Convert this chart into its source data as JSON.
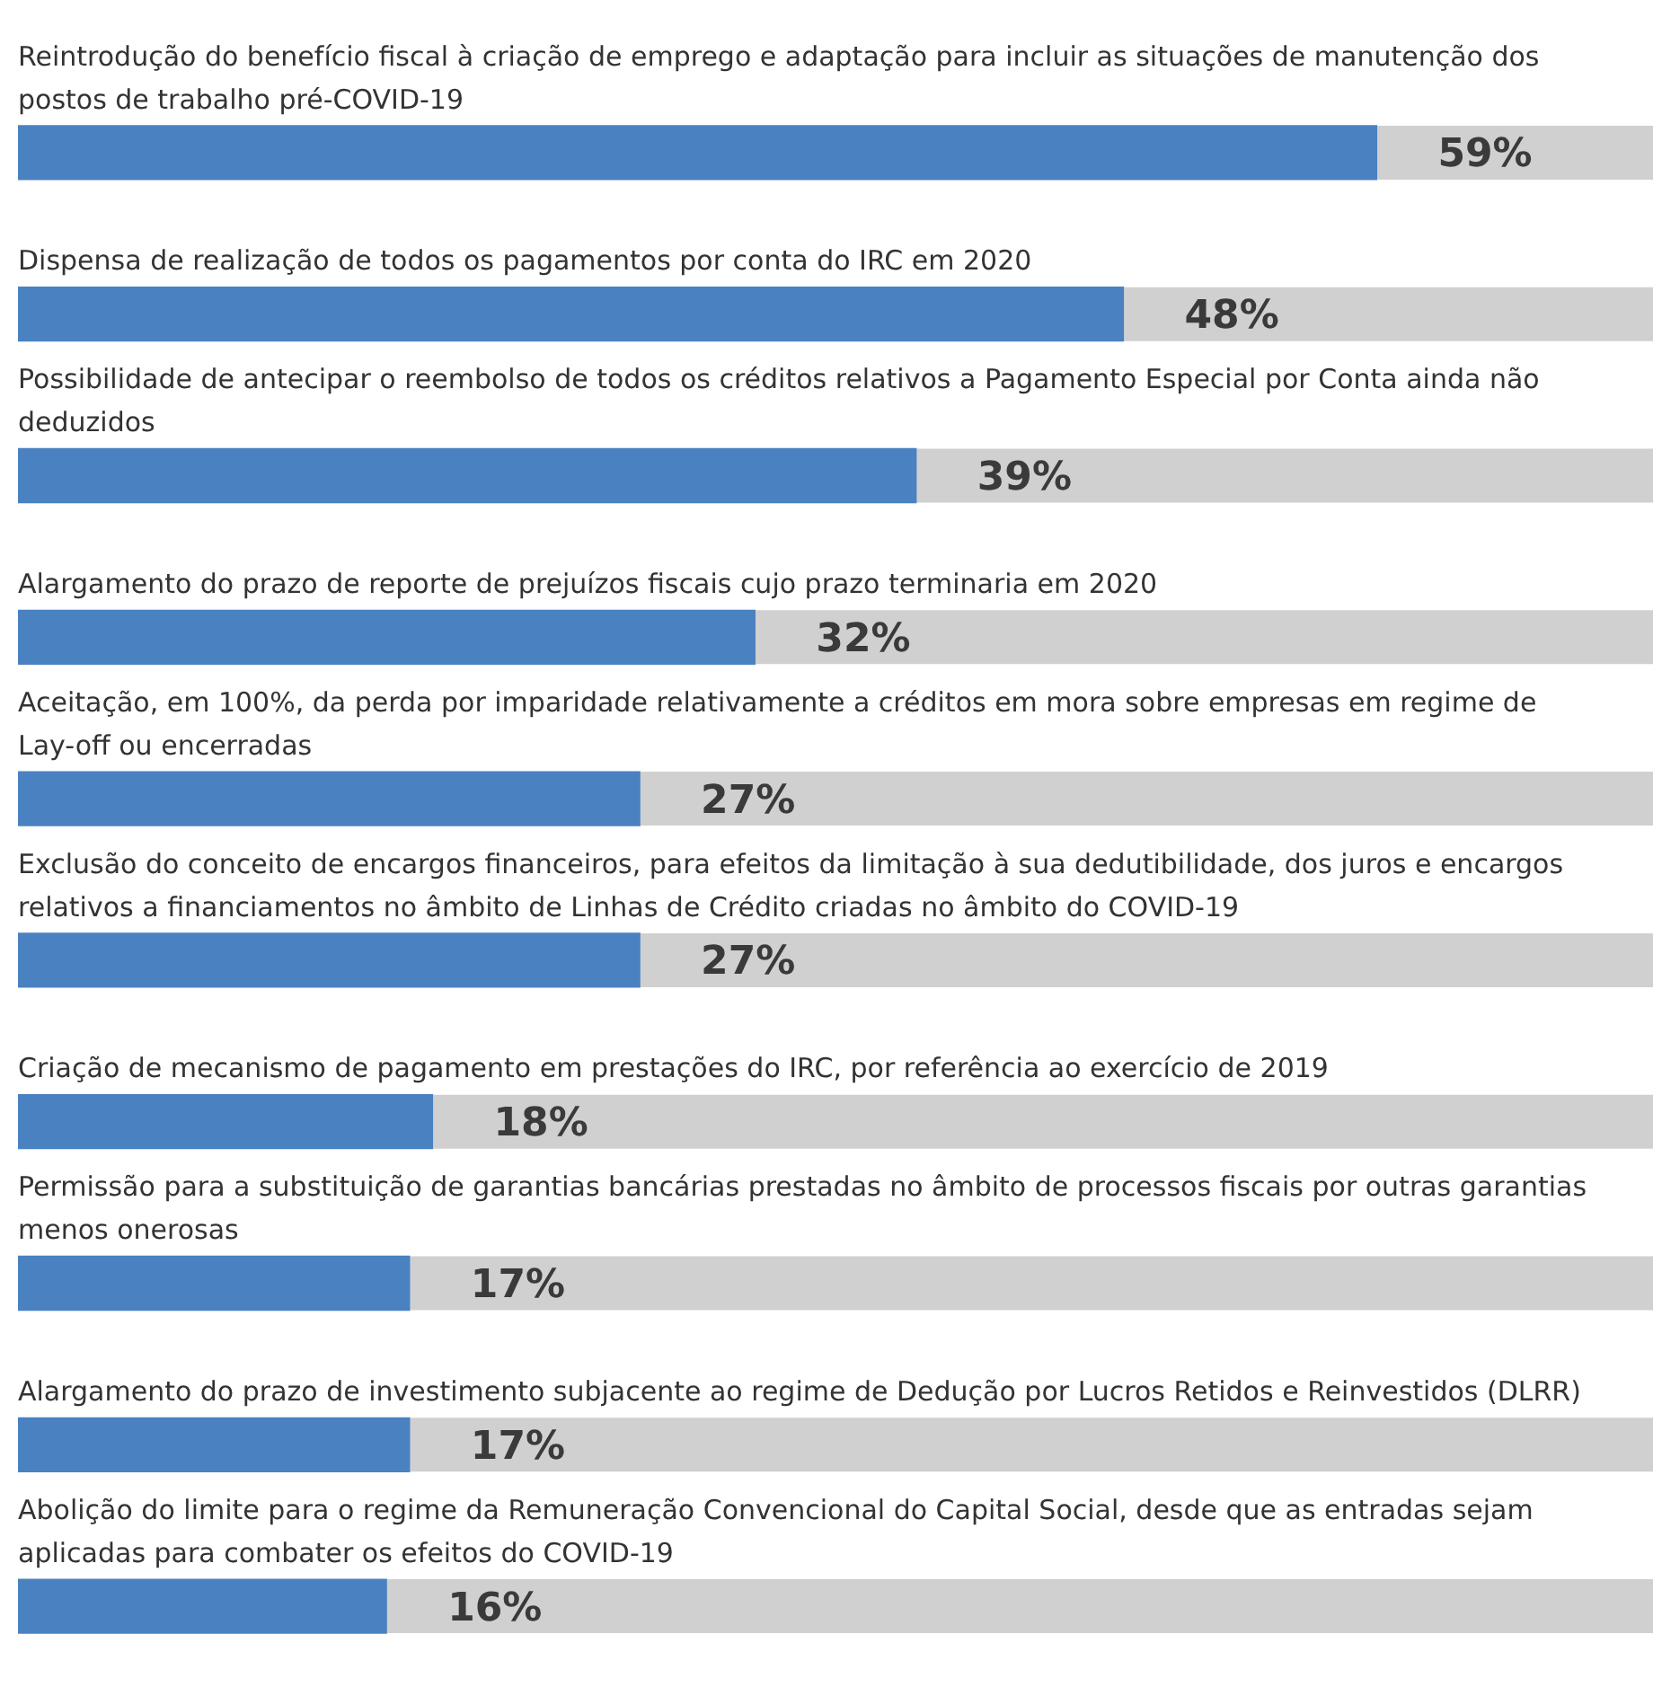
{
  "chart_data": {
    "type": "bar",
    "orientation": "horizontal",
    "categories": [
      "Reintrodução do benefício fiscal à criação de emprego e adaptação para incluir as situações de manutenção dos postos de trabalho pré-COVID-19",
      "Dispensa de realização de todos os pagamentos por conta do IRC em 2020",
      "Possibilidade de antecipar o reembolso de todos os créditos relativos a Pagamento Especial por Conta ainda não deduzidos",
      "Alargamento do prazo de reporte de prejuízos fiscais cujo prazo terminaria em 2020",
      "Aceitação, em 100%, da perda por imparidade relativamente a créditos em mora sobre empresas em regime de Lay-off ou encerradas",
      "Exclusão do conceito de encargos financeiros, para efeitos da limitação à sua dedutibilidade, dos juros e encargos relativos a financiamentos no âmbito de Linhas de Crédito criadas no âmbito do COVID-19",
      "Criação de mecanismo de pagamento em prestações do IRC, por referência ao exercício de 2019",
      "Permissão para a substituição de garantias bancárias prestadas no âmbito de processos fiscais por outras garantias menos onerosas",
      "Alargamento do prazo de investimento subjacente ao regime de Dedução por Lucros Retidos e Reinvestidos (DLRR)",
      "Abolição do limite para o regime da Remuneração Convencional do Capital Social, desde que as entradas sejam aplicadas para combater os efeitos do COVID-19"
    ],
    "values": [
      59,
      48,
      39,
      32,
      27,
      27,
      18,
      17,
      17,
      16
    ],
    "value_labels": [
      "59%",
      "48%",
      "39%",
      "32%",
      "27%",
      "27%",
      "18%",
      "17%",
      "17%",
      "16%"
    ],
    "color": "#4a81c1",
    "xlim": [
      0,
      71
    ],
    "tick_labels": false
  }
}
